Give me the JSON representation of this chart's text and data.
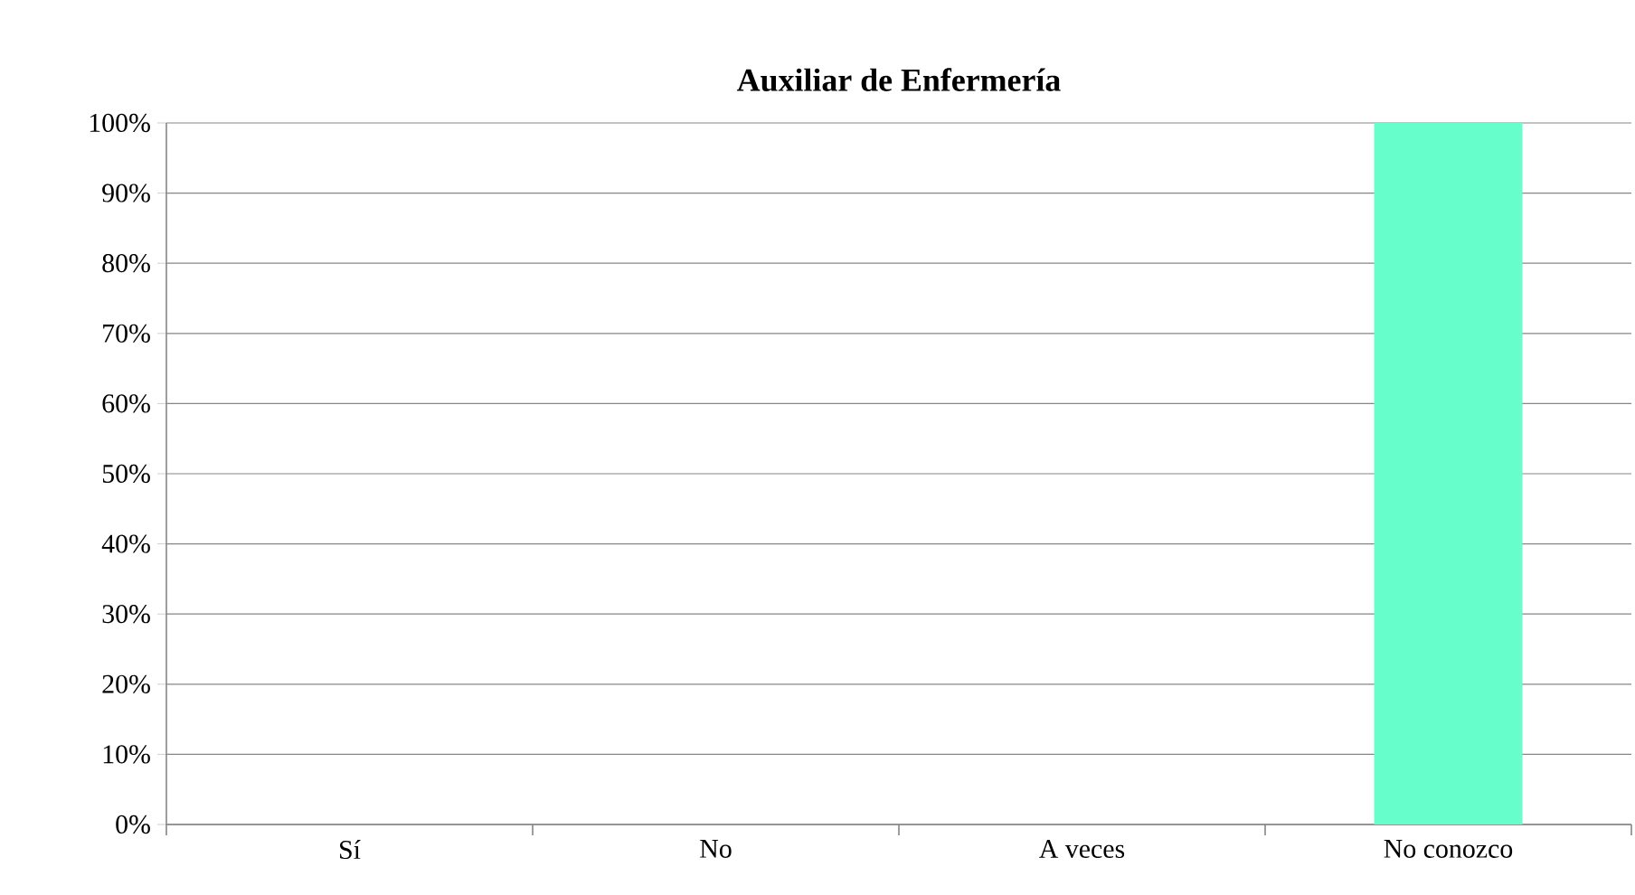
{
  "chart_data": {
    "type": "bar",
    "title": "Auxiliar de Enfermería",
    "categories": [
      "Sí",
      "No",
      "A veces",
      "No conozco"
    ],
    "values": [
      0,
      0,
      0,
      100
    ],
    "color": "#66ffcc",
    "ylim": [
      0,
      100
    ],
    "yticks": [
      {
        "value": 0,
        "label": "0%"
      },
      {
        "value": 10,
        "label": "10%"
      },
      {
        "value": 20,
        "label": "20%"
      },
      {
        "value": 30,
        "label": "30%"
      },
      {
        "value": 40,
        "label": "40%"
      },
      {
        "value": 50,
        "label": "50%"
      },
      {
        "value": 60,
        "label": "60%"
      },
      {
        "value": 70,
        "label": "70%"
      },
      {
        "value": 80,
        "label": "80%"
      },
      {
        "value": 90,
        "label": "90%"
      },
      {
        "value": 100,
        "label": "100%"
      }
    ],
    "grid": "y"
  }
}
